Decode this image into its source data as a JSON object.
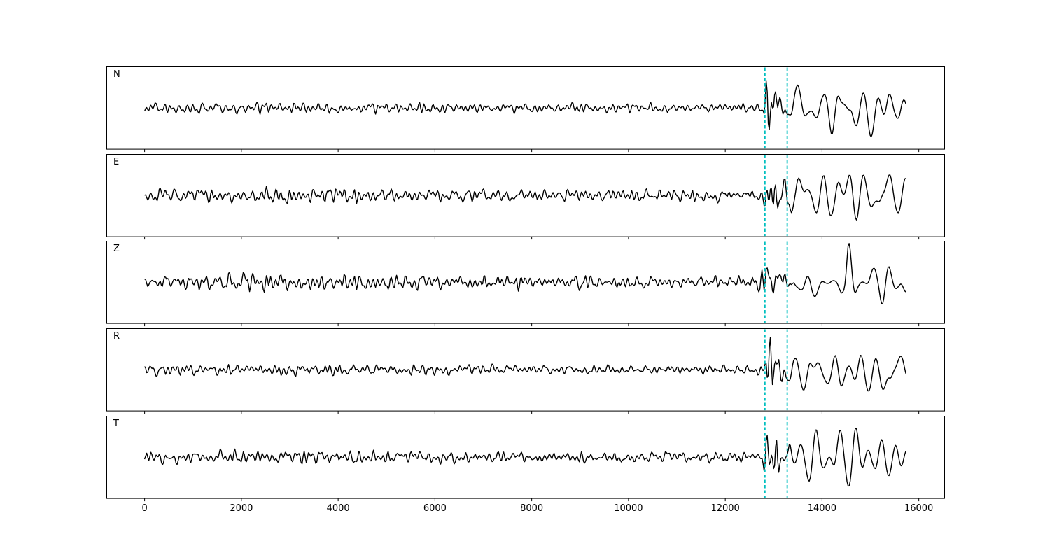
{
  "figure": {
    "background_color": "#ffffff",
    "trace_color": "#000000",
    "frame_color": "#000000"
  },
  "chart_data": {
    "type": "line",
    "kind": "seismogram-multipanel",
    "title": "",
    "xlabel": "",
    "ylabel": "",
    "panels": [
      {
        "label": "N",
        "seed": 11,
        "envelope": [
          [
            0,
            0.13
          ],
          [
            4000,
            0.14
          ],
          [
            9000,
            0.12
          ],
          [
            12600,
            0.12
          ],
          [
            12780,
            0.15
          ],
          [
            12870,
            0.88
          ],
          [
            13000,
            0.8
          ],
          [
            13180,
            0.45
          ],
          [
            13320,
            0.4
          ],
          [
            13500,
            0.55
          ],
          [
            13800,
            0.5
          ],
          [
            14200,
            0.68
          ],
          [
            14600,
            0.6
          ],
          [
            15000,
            0.68
          ],
          [
            15300,
            0.55
          ],
          [
            15600,
            0.45
          ],
          [
            15750,
            0.38
          ]
        ]
      },
      {
        "label": "E",
        "seed": 22,
        "envelope": [
          [
            0,
            0.18
          ],
          [
            3000,
            0.2
          ],
          [
            8000,
            0.17
          ],
          [
            12600,
            0.15
          ],
          [
            12800,
            0.25
          ],
          [
            12880,
            0.9
          ],
          [
            13050,
            0.8
          ],
          [
            13250,
            0.55
          ],
          [
            13500,
            0.6
          ],
          [
            13900,
            0.55
          ],
          [
            14300,
            0.7
          ],
          [
            14700,
            0.6
          ],
          [
            15100,
            0.55
          ],
          [
            15500,
            0.5
          ],
          [
            15750,
            0.4
          ]
        ]
      },
      {
        "label": "Z",
        "seed": 33,
        "envelope": [
          [
            0,
            0.2
          ],
          [
            2500,
            0.24
          ],
          [
            5000,
            0.2
          ],
          [
            9000,
            0.18
          ],
          [
            12500,
            0.15
          ],
          [
            12850,
            0.4
          ],
          [
            13100,
            0.38
          ],
          [
            13400,
            0.4
          ],
          [
            13800,
            0.38
          ],
          [
            14200,
            0.42
          ],
          [
            14440,
            0.4
          ],
          [
            14540,
            0.97
          ],
          [
            14600,
            0.9
          ],
          [
            14750,
            0.4
          ],
          [
            15000,
            0.45
          ],
          [
            15250,
            0.55
          ],
          [
            15450,
            0.4
          ],
          [
            15650,
            0.5
          ],
          [
            15750,
            0.35
          ]
        ]
      },
      {
        "label": "R",
        "seed": 44,
        "envelope": [
          [
            0,
            0.13
          ],
          [
            3500,
            0.15
          ],
          [
            8000,
            0.12
          ],
          [
            12600,
            0.11
          ],
          [
            12800,
            0.2
          ],
          [
            12880,
            0.9
          ],
          [
            13020,
            0.75
          ],
          [
            13200,
            0.45
          ],
          [
            13400,
            0.4
          ],
          [
            13700,
            0.55
          ],
          [
            14100,
            0.6
          ],
          [
            14500,
            0.65
          ],
          [
            14900,
            0.58
          ],
          [
            15300,
            0.6
          ],
          [
            15600,
            0.4
          ],
          [
            15750,
            0.32
          ]
        ]
      },
      {
        "label": "T",
        "seed": 55,
        "envelope": [
          [
            0,
            0.16
          ],
          [
            3000,
            0.18
          ],
          [
            7000,
            0.16
          ],
          [
            12600,
            0.14
          ],
          [
            12800,
            0.3
          ],
          [
            12900,
            0.72
          ],
          [
            13100,
            0.6
          ],
          [
            13300,
            0.55
          ],
          [
            13600,
            0.62
          ],
          [
            14000,
            0.6
          ],
          [
            14400,
            0.75
          ],
          [
            14800,
            0.68
          ],
          [
            15100,
            0.72
          ],
          [
            15400,
            0.55
          ],
          [
            15650,
            0.45
          ],
          [
            15750,
            0.38
          ]
        ]
      }
    ],
    "x_axis": {
      "ticks": [
        0,
        2000,
        4000,
        6000,
        8000,
        10000,
        12000,
        14000,
        16000
      ],
      "tick_labels": [
        "0",
        "2000",
        "4000",
        "6000",
        "8000",
        "10000",
        "12000",
        "14000",
        "16000"
      ],
      "xlim": [
        -790,
        16540
      ],
      "data_start": 0,
      "data_end": 15750
    },
    "event_markers": {
      "x_values": [
        12820,
        13280
      ],
      "style": "dashed",
      "color": "#00bfbf"
    },
    "line_color": "#000000",
    "legend": null,
    "grid": false
  }
}
